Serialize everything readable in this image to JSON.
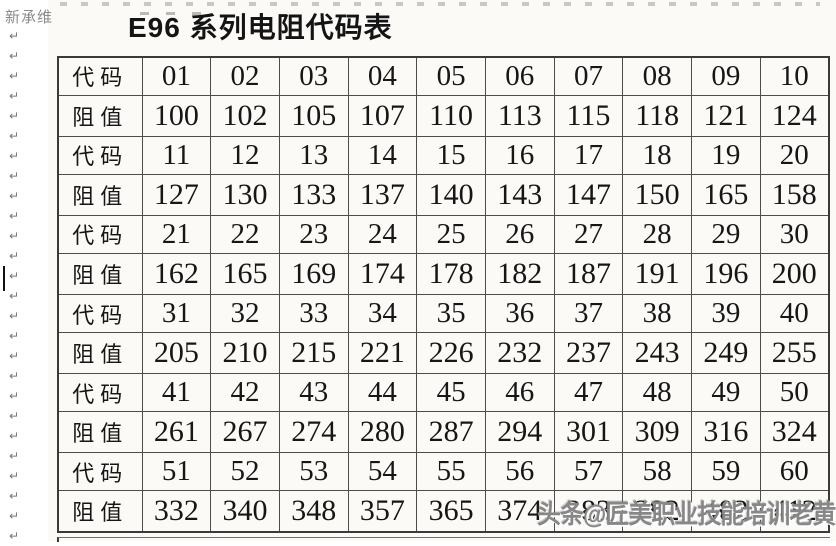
{
  "page": {
    "margin_text": "新承维",
    "paragraph_mark": "↵",
    "paragraph_mark_count": 26
  },
  "doc": {
    "title": "E96 系列电阻代码表",
    "watermark": "头条@匠美职业技能培训老黄"
  },
  "table": {
    "code_label": "代码",
    "value_label": "阻值",
    "pairs": [
      {
        "codes": [
          "01",
          "02",
          "03",
          "04",
          "05",
          "06",
          "07",
          "08",
          "09",
          "10"
        ],
        "values": [
          "100",
          "102",
          "105",
          "107",
          "110",
          "113",
          "115",
          "118",
          "121",
          "124"
        ]
      },
      {
        "codes": [
          "11",
          "12",
          "13",
          "14",
          "15",
          "16",
          "17",
          "18",
          "19",
          "20"
        ],
        "values": [
          "127",
          "130",
          "133",
          "137",
          "140",
          "143",
          "147",
          "150",
          "165",
          "158"
        ]
      },
      {
        "codes": [
          "21",
          "22",
          "23",
          "24",
          "25",
          "26",
          "27",
          "28",
          "29",
          "30"
        ],
        "values": [
          "162",
          "165",
          "169",
          "174",
          "178",
          "182",
          "187",
          "191",
          "196",
          "200"
        ]
      },
      {
        "codes": [
          "31",
          "32",
          "33",
          "34",
          "35",
          "36",
          "37",
          "38",
          "39",
          "40"
        ],
        "values": [
          "205",
          "210",
          "215",
          "221",
          "226",
          "232",
          "237",
          "243",
          "249",
          "255"
        ]
      },
      {
        "codes": [
          "41",
          "42",
          "43",
          "44",
          "45",
          "46",
          "47",
          "48",
          "49",
          "50"
        ],
        "values": [
          "261",
          "267",
          "274",
          "280",
          "287",
          "294",
          "301",
          "309",
          "316",
          "324"
        ]
      },
      {
        "codes": [
          "51",
          "52",
          "53",
          "54",
          "55",
          "56",
          "57",
          "58",
          "59",
          "60"
        ],
        "values": [
          "332",
          "340",
          "348",
          "357",
          "365",
          "374",
          "383",
          "392",
          "402",
          "412"
        ]
      }
    ]
  }
}
